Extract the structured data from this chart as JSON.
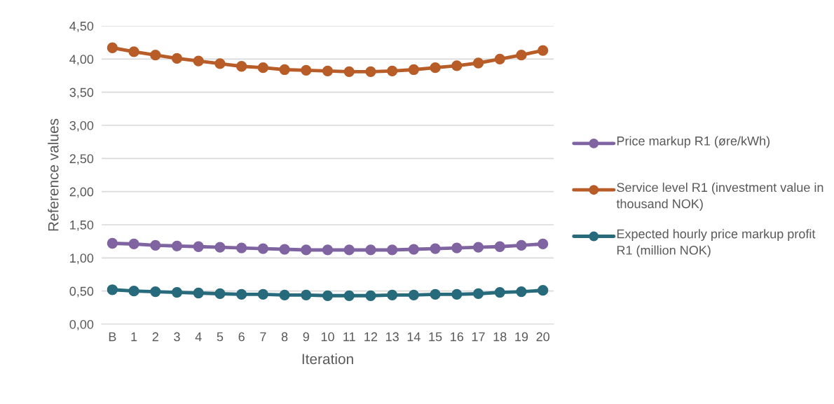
{
  "chart_data": {
    "type": "line",
    "xlabel": "Iteration",
    "ylabel": "Reference values",
    "categories": [
      "B",
      "1",
      "2",
      "3",
      "4",
      "5",
      "6",
      "7",
      "8",
      "9",
      "10",
      "11",
      "12",
      "13",
      "14",
      "15",
      "16",
      "17",
      "18",
      "19",
      "20"
    ],
    "series": [
      {
        "name": "Price markup R1 (øre/kWh)",
        "color": "#8064a2",
        "values": [
          1.22,
          1.21,
          1.19,
          1.18,
          1.17,
          1.16,
          1.15,
          1.14,
          1.13,
          1.12,
          1.12,
          1.12,
          1.12,
          1.12,
          1.13,
          1.14,
          1.15,
          1.16,
          1.17,
          1.19,
          1.21
        ]
      },
      {
        "name": "Service level R1 (investment value in thousand NOK)",
        "color": "#b85c28",
        "values": [
          4.17,
          4.11,
          4.06,
          4.01,
          3.97,
          3.93,
          3.89,
          3.87,
          3.84,
          3.83,
          3.82,
          3.81,
          3.81,
          3.82,
          3.84,
          3.87,
          3.9,
          3.94,
          4.0,
          4.06,
          4.13
        ]
      },
      {
        "name": "Expected hourly price markup profit R1 (million NOK)",
        "color": "#276a7c",
        "values": [
          0.52,
          0.5,
          0.49,
          0.48,
          0.47,
          0.46,
          0.45,
          0.45,
          0.44,
          0.44,
          0.43,
          0.43,
          0.43,
          0.44,
          0.44,
          0.45,
          0.45,
          0.46,
          0.48,
          0.49,
          0.51
        ]
      }
    ],
    "ylim": [
      0,
      4.5
    ],
    "yticks": [
      {
        "value": 0,
        "label": "0,00"
      },
      {
        "value": 0.5,
        "label": "0,50"
      },
      {
        "value": 1,
        "label": "1,00"
      },
      {
        "value": 1.5,
        "label": "1,50"
      },
      {
        "value": 2,
        "label": "2,00"
      },
      {
        "value": 2.5,
        "label": "2,50"
      },
      {
        "value": 3,
        "label": "3,00"
      },
      {
        "value": 3.5,
        "label": "3,50"
      },
      {
        "value": 4,
        "label": "4,00"
      },
      {
        "value": 4.5,
        "label": "4,50"
      }
    ],
    "grid": "y",
    "legend": "right",
    "marker": "circle",
    "line_style": "solid"
  }
}
